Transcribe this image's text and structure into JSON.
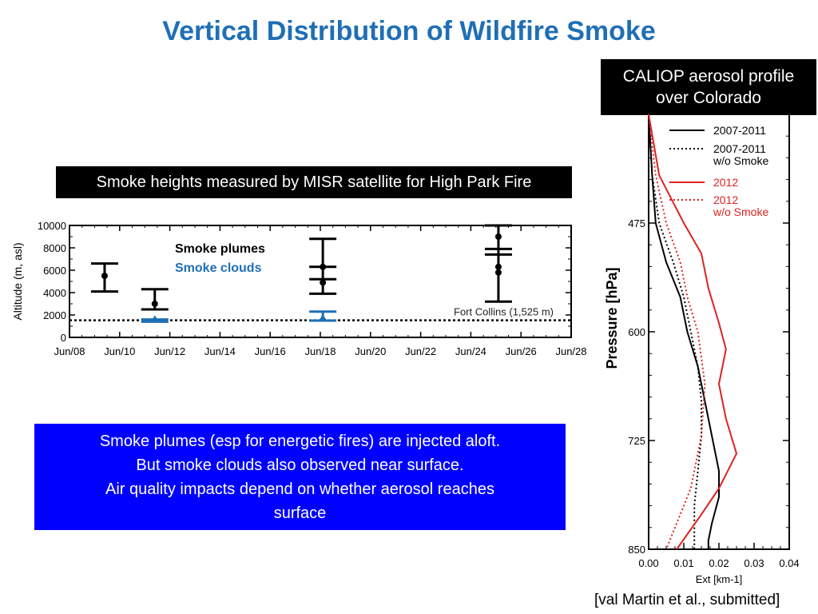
{
  "slide": {
    "title": "Vertical Distribution of Wildfire Smoke",
    "caliop_label_line1": "CALIOP aerosol profile",
    "caliop_label_line2": "over Colorado",
    "misr_label": "Smoke heights measured by MISR satellite for High Park Fire",
    "summary_lines": [
      "Smoke plumes (esp for energetic fires) are injected aloft.",
      "But smoke clouds also observed near surface.",
      "Air quality impacts depend on whether aerosol reaches",
      "surface"
    ],
    "citation": "[val Martin et al., submitted]"
  },
  "chart_data": [
    {
      "type": "scatter",
      "ylabel": "Altitude (m, asl)",
      "x_ticks": [
        "Jun/08",
        "Jun/10",
        "Jun/12",
        "Jun/14",
        "Jun/16",
        "Jun/18",
        "Jun/20",
        "Jun/22",
        "Jun/24",
        "Jun/26",
        "Jun/28"
      ],
      "y_ticks": [
        "0",
        "2000",
        "4000",
        "6000",
        "8000",
        "10000"
      ],
      "ylim": [
        0,
        10000
      ],
      "xlim_days": [
        8,
        28
      ],
      "legend": [
        "Smoke plumes",
        "Smoke clouds"
      ],
      "reference_line": {
        "label": "Fort Collins (1,525 m)",
        "value": 1525
      },
      "series": [
        {
          "name": "Smoke plumes",
          "color": "#000000",
          "points": [
            {
              "day": 9.4,
              "low": 4100,
              "high": 6600,
              "markers": [
                5500
              ]
            },
            {
              "day": 11.4,
              "low": 2500,
              "high": 4300,
              "markers": [
                3000
              ]
            },
            {
              "day": 18.1,
              "low": 3900,
              "high": 8800,
              "markers": [
                6300,
                4900
              ],
              "ticks": [
                6300,
                5200
              ]
            },
            {
              "day": 25.1,
              "low": 3200,
              "high": 10000,
              "markers": [
                9000,
                6300,
                5800
              ],
              "ticks": [
                7900,
                7400
              ]
            }
          ]
        },
        {
          "name": "Smoke clouds",
          "color": "#1f6fb5",
          "points": [
            {
              "day": 11.4,
              "low": 1400,
              "high": 1600
            },
            {
              "day": 18.1,
              "low": 1500,
              "high": 2300
            }
          ]
        }
      ]
    },
    {
      "type": "line",
      "xlabel": "Ext [km-1]",
      "ylabel": "Pressure [hPa]",
      "x_ticks": [
        "0.00",
        "0.01",
        "0.02",
        "0.03",
        "0.04"
      ],
      "y_ticks": [
        "475",
        "600",
        "725",
        "850"
      ],
      "xlim": [
        0,
        0.04
      ],
      "ylim": [
        850,
        350
      ],
      "series": [
        {
          "name": "2007-2011",
          "color": "#000000",
          "dash": "solid",
          "x": [
            0.0,
            0.001,
            0.002,
            0.005,
            0.009,
            0.011,
            0.014,
            0.016,
            0.018,
            0.02,
            0.02,
            0.018,
            0.017,
            0.017
          ],
          "y": [
            350,
            420,
            475,
            520,
            560,
            600,
            640,
            680,
            720,
            760,
            790,
            820,
            840,
            850
          ]
        },
        {
          "name": "2007-2011 w/o Smoke",
          "color": "#000000",
          "dash": "dotted",
          "x": [
            0.0,
            0.001,
            0.003,
            0.007,
            0.01,
            0.012,
            0.014,
            0.015,
            0.015,
            0.014,
            0.013,
            0.013
          ],
          "y": [
            350,
            420,
            475,
            520,
            560,
            600,
            640,
            680,
            720,
            760,
            800,
            850
          ]
        },
        {
          "name": "2012",
          "color": "#dd2222",
          "dash": "solid",
          "x": [
            0.0,
            0.003,
            0.01,
            0.015,
            0.017,
            0.02,
            0.022,
            0.02,
            0.022,
            0.025,
            0.02,
            0.015,
            0.008
          ],
          "y": [
            350,
            420,
            475,
            510,
            550,
            590,
            620,
            660,
            700,
            740,
            780,
            810,
            850
          ]
        },
        {
          "name": "2012 w/o Smoke",
          "color": "#dd2222",
          "dash": "dotted",
          "x": [
            0.0,
            0.002,
            0.005,
            0.009,
            0.011,
            0.014,
            0.016,
            0.015,
            0.012,
            0.008,
            0.005
          ],
          "y": [
            350,
            420,
            475,
            520,
            560,
            600,
            660,
            720,
            780,
            820,
            850
          ]
        }
      ]
    }
  ]
}
